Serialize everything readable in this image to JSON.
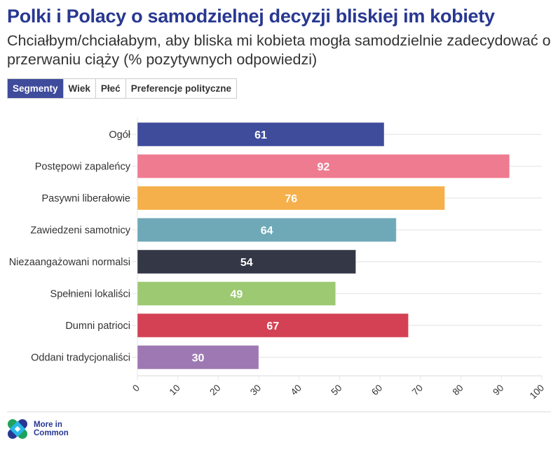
{
  "header": {
    "title": "Polki i Polacy o samodzielnej decyzji bliskiej im kobiety",
    "subtitle": "Chciałbym/chciałabym, aby bliska mi kobieta mogła samodzielnie zadecydować o przerwaniu ciąży (% pozytywnych odpowiedzi)"
  },
  "tabs": [
    {
      "label": "Segmenty",
      "active": true
    },
    {
      "label": "Wiek",
      "active": false
    },
    {
      "label": "Płeć",
      "active": false
    },
    {
      "label": "Preferencje polityczne",
      "active": false
    }
  ],
  "chart_data": {
    "type": "bar",
    "orientation": "horizontal",
    "title": "Polki i Polacy o samodzielnej decyzji bliskiej im kobiety",
    "xlabel": "",
    "ylabel": "",
    "xlim": [
      0,
      100
    ],
    "xticks": [
      0,
      10,
      20,
      30,
      40,
      50,
      60,
      70,
      80,
      90,
      100
    ],
    "grid": true,
    "legend": "none",
    "categories": [
      "Ogół",
      "Postępowi zapaleńcy",
      "Pasywni liberałowie",
      "Zawiedzeni samotnicy",
      "Niezaangażowani normalsi",
      "Spełnieni lokaliści",
      "Dumni patrioci",
      "Oddani tradycjonaliści"
    ],
    "values": [
      61,
      92,
      76,
      64,
      54,
      49,
      67,
      30
    ],
    "colors": [
      "#3f4b9b",
      "#ef7b91",
      "#f6b04b",
      "#6fa9b8",
      "#343745",
      "#9cc972",
      "#d44154",
      "#9e78b3"
    ]
  },
  "footer": {
    "logo_line1": "More in",
    "logo_line2": "Common"
  },
  "colors": {
    "title": "#283891",
    "active_tab": "#3f4b9b"
  }
}
